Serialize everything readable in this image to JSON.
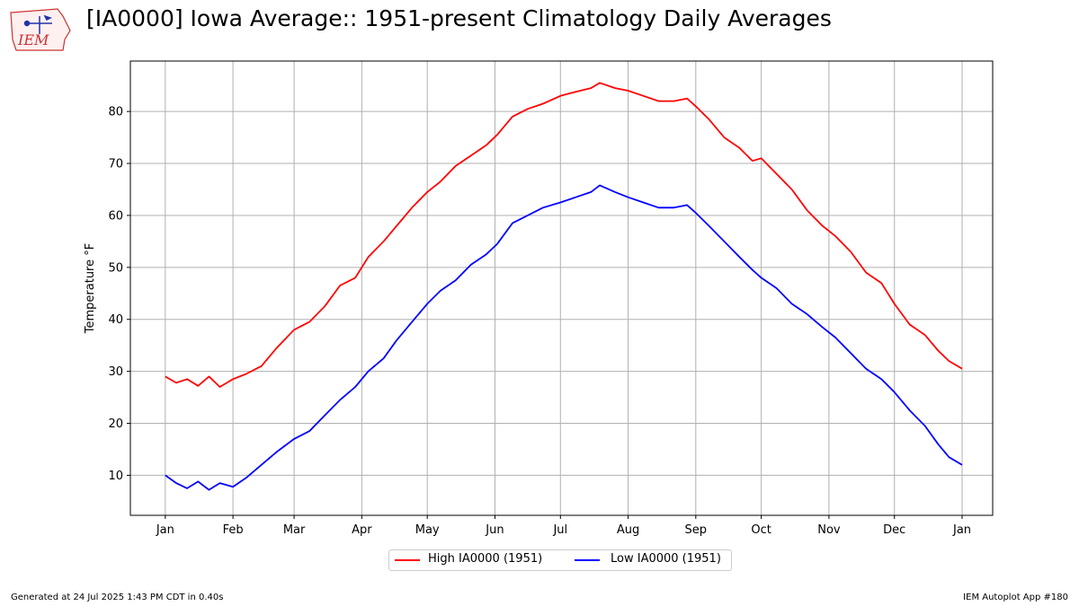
{
  "header": {
    "title": "[IA0000] Iowa Average:: 1951-present Climatology Daily Averages",
    "logo_text": "IEM"
  },
  "footer": {
    "generated": "Generated at 24 Jul 2025 1:43 PM CDT in 0.40s",
    "app": "IEM Autoplot App #180"
  },
  "colors": {
    "high": "#ff0000",
    "low": "#0000ff",
    "grid": "#b0b0b0",
    "logo": "#cc3333"
  },
  "chart_data": {
    "type": "line",
    "title": "[IA0000] Iowa Average:: 1951-present Climatology Daily Averages",
    "xlabel": "",
    "ylabel": "Temperature °F",
    "ylim": [
      2.3,
      89.7
    ],
    "xlim": [
      -15,
      380
    ],
    "grid": true,
    "legend_position": "bottom-center",
    "x_tick_labels": [
      "Jan",
      "Feb",
      "Mar",
      "Apr",
      "May",
      "Jun",
      "Jul",
      "Aug",
      "Sep",
      "Oct",
      "Nov",
      "Dec",
      "Jan"
    ],
    "x_tick_days": [
      1,
      32,
      60,
      91,
      121,
      152,
      182,
      213,
      244,
      274,
      305,
      335,
      366
    ],
    "y_ticks": [
      10,
      20,
      30,
      40,
      50,
      60,
      70,
      80
    ],
    "x_unit": "day of year",
    "series": [
      {
        "name": "High IA0000 (1951)",
        "color": "#ff0000",
        "x": [
          1,
          6,
          11,
          16,
          21,
          26,
          32,
          38,
          45,
          52,
          60,
          67,
          74,
          81,
          88,
          94,
          101,
          107,
          114,
          121,
          127,
          134,
          141,
          148,
          153,
          160,
          167,
          174,
          182,
          189,
          196,
          200,
          207,
          213,
          220,
          227,
          234,
          240,
          244,
          250,
          257,
          264,
          270,
          274,
          281,
          288,
          295,
          302,
          308,
          315,
          322,
          329,
          335,
          342,
          349,
          355,
          360,
          366
        ],
        "values": [
          29,
          27.8,
          28.5,
          27.2,
          29,
          27,
          28.5,
          29.5,
          31,
          34.5,
          38,
          39.5,
          42.5,
          46.5,
          48,
          52,
          55,
          58,
          61.5,
          64.5,
          66.5,
          69.5,
          71.5,
          73.5,
          75.5,
          79,
          80.5,
          81.5,
          83,
          83.8,
          84.5,
          85.5,
          84.5,
          84,
          83,
          82,
          82,
          82.5,
          81,
          78.5,
          75,
          73,
          70.5,
          71,
          68,
          65,
          61,
          58,
          56,
          53,
          49,
          47,
          43,
          39,
          37,
          34,
          32,
          30.5
        ]
      },
      {
        "name": "Low IA0000 (1951)",
        "color": "#0000ff",
        "x": [
          1,
          6,
          11,
          16,
          21,
          26,
          32,
          38,
          45,
          52,
          60,
          67,
          74,
          81,
          88,
          94,
          101,
          107,
          114,
          121,
          127,
          134,
          141,
          148,
          153,
          160,
          167,
          174,
          182,
          189,
          196,
          200,
          207,
          213,
          220,
          227,
          234,
          240,
          244,
          250,
          257,
          264,
          270,
          274,
          281,
          288,
          295,
          302,
          308,
          315,
          322,
          329,
          335,
          342,
          349,
          355,
          360,
          366
        ],
        "values": [
          10,
          8.5,
          7.5,
          8.8,
          7.2,
          8.5,
          7.8,
          9.5,
          12,
          14.5,
          17,
          18.5,
          21.5,
          24.5,
          27,
          30,
          32.5,
          36,
          39.5,
          43,
          45.5,
          47.5,
          50.5,
          52.5,
          54.5,
          58.5,
          60,
          61.5,
          62.5,
          63.5,
          64.5,
          65.8,
          64.5,
          63.5,
          62.5,
          61.5,
          61.5,
          62,
          60.5,
          58,
          55,
          52,
          49.5,
          48,
          46,
          43,
          41,
          38.5,
          36.5,
          33.5,
          30.5,
          28.5,
          26,
          22.5,
          19.5,
          16,
          13.5,
          12
        ]
      }
    ]
  }
}
